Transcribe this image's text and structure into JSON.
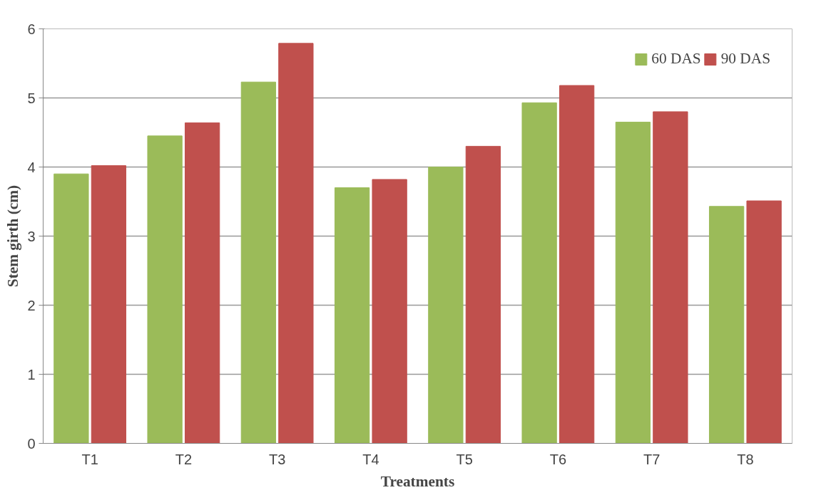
{
  "chart_data": {
    "type": "bar",
    "xlabel": "Treatments",
    "ylabel": "Stem girth (cm)",
    "categories": [
      "T1",
      "T2",
      "T3",
      "T4",
      "T5",
      "T6",
      "T7",
      "T8"
    ],
    "series": [
      {
        "name": "60 DAS",
        "color": "#9bbb59",
        "values": [
          3.9,
          4.45,
          5.23,
          3.7,
          4.0,
          4.93,
          4.65,
          3.43
        ]
      },
      {
        "name": "90 DAS",
        "color": "#c0504d",
        "values": [
          4.02,
          4.64,
          5.79,
          3.82,
          4.3,
          5.18,
          4.8,
          3.51
        ]
      }
    ],
    "ylim": [
      0,
      6
    ],
    "yticks": [
      0,
      1,
      2,
      3,
      4,
      5,
      6
    ],
    "grid": "y",
    "legend": "top right"
  }
}
